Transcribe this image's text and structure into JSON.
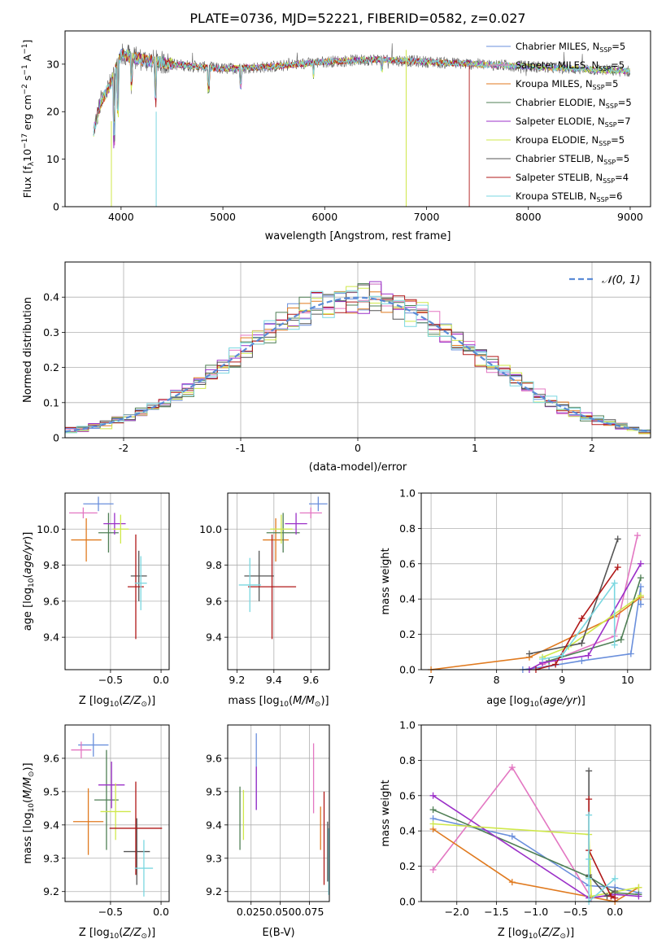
{
  "figure_title": "PLATE=0736, MJD=52221, FIBERID=0582, z=0.027",
  "series_colors": [
    "#6a8fdc",
    "#e377c2",
    "#e07a1f",
    "#4f7f55",
    "#9b30c8",
    "#cfe84a",
    "#555555",
    "#b01818",
    "#7ad7e0"
  ],
  "series_names": [
    "Chabrier MILES, N_SSP=5",
    "Salpeter MILES, N_SSP=5",
    "Kroupa MILES, N_SSP=5",
    "Chabrier ELODIE, N_SSP=5",
    "Salpeter ELODIE, N_SSP=7",
    "Kroupa ELODIE, N_SSP=5",
    "Chabrier STELIB, N_SSP=5",
    "Salpeter STELIB, N_SSP=4",
    "Kroupa STELIB, N_SSP=6"
  ],
  "chart_data": [
    {
      "id": "spectrum",
      "type": "line",
      "xlabel": "wavelength [Angstrom, rest frame]",
      "ylabel": "Flux [f_λ 10^-17 erg cm^-2 s^-1 A^-1]",
      "xlim": [
        3450,
        9200
      ],
      "ylim": [
        0,
        37
      ],
      "xticks": [
        4000,
        5000,
        6000,
        7000,
        8000,
        9000
      ],
      "yticks": [
        0,
        10,
        20,
        30
      ],
      "grid": false,
      "legend": "top-right",
      "note_cutoffs": {
        "Kroupa ELODIE": 6800,
        "Salpeter STELIB": 7420
      },
      "continuum": [
        [
          3730,
          16
        ],
        [
          3800,
          22
        ],
        [
          3900,
          26
        ],
        [
          4000,
          32
        ],
        [
          4200,
          31
        ],
        [
          4500,
          30
        ],
        [
          5000,
          29
        ],
        [
          5500,
          29.5
        ],
        [
          6000,
          30.5
        ],
        [
          6500,
          31
        ],
        [
          7000,
          30.5
        ],
        [
          7500,
          30
        ],
        [
          8000,
          29.5
        ],
        [
          8500,
          29
        ],
        [
          9000,
          28.5
        ],
        [
          9200,
          28.5
        ]
      ]
    },
    {
      "id": "residuals",
      "type": "line",
      "xlabel": "(data-model)/error",
      "ylabel": "Normed distribution",
      "xlim": [
        -2.5,
        2.5
      ],
      "ylim": [
        0,
        0.5
      ],
      "xticks": [
        -2,
        -1,
        0,
        1,
        2
      ],
      "yticks": [
        0,
        0.1,
        0.2,
        0.3,
        0.4
      ],
      "grid": true,
      "legend": "top-right",
      "legend_label": "N(0,1)",
      "bin_width": 0.1
    },
    {
      "id": "age_vs_Z",
      "type": "scatter",
      "xlabel": "Z [log10(Z/Z_sun)]",
      "ylabel": "age  [log10(age/yr)]",
      "xlim": [
        -0.95,
        0.08
      ],
      "ylim": [
        9.22,
        10.2
      ],
      "xticks": [
        -0.5,
        0.0
      ],
      "xticklabels": [
        "−0.5",
        "0.0"
      ],
      "yticks": [
        9.4,
        9.6,
        9.8,
        10.0
      ],
      "yticklabels": [
        "9.4",
        "9.6",
        "9.8",
        "10.0"
      ],
      "grid": true,
      "points": [
        {
          "s": 0,
          "x": -0.62,
          "y": 10.14,
          "xerr": 0.15,
          "yerr": 0.04
        },
        {
          "s": 1,
          "x": -0.77,
          "y": 10.09,
          "xerr": 0.14,
          "yerr": 0.03
        },
        {
          "s": 2,
          "x": -0.74,
          "y": 9.94,
          "xerr": 0.15,
          "yerr": 0.12
        },
        {
          "s": 3,
          "x": -0.52,
          "y": 9.98,
          "xerr": 0.1,
          "yerr": 0.11
        },
        {
          "s": 4,
          "x": -0.46,
          "y": 10.03,
          "xerr": 0.11,
          "yerr": 0.06
        },
        {
          "s": 5,
          "x": -0.4,
          "y": 10.0,
          "xerr": 0.08,
          "yerr": 0.08
        },
        {
          "s": 6,
          "x": -0.22,
          "y": 9.74,
          "xerr": 0.08,
          "yerr": 0.14
        },
        {
          "s": 7,
          "x": -0.25,
          "y": 9.68,
          "xerr": 0.08,
          "yerr": 0.29
        },
        {
          "s": 8,
          "x": -0.2,
          "y": 9.7,
          "xerr": 0.06,
          "yerr": 0.15
        }
      ]
    },
    {
      "id": "age_vs_mass",
      "type": "scatter",
      "xlabel": "mass [log10(M/M_sun)]",
      "ylabel": "",
      "xlim": [
        9.15,
        9.7
      ],
      "ylim": [
        9.22,
        10.2
      ],
      "xticks": [
        9.2,
        9.4,
        9.6
      ],
      "xticklabels": [
        "9.2",
        "9.4",
        "9.6"
      ],
      "yticks": [
        9.4,
        9.6,
        9.8,
        10.0
      ],
      "yticklabels": [
        "9.4",
        "9.6",
        "9.8",
        "10.0"
      ],
      "grid": true,
      "points": [
        {
          "s": 0,
          "x": 9.64,
          "y": 10.14,
          "xerr": 0.05,
          "yerr": 0.04
        },
        {
          "s": 1,
          "x": 9.6,
          "y": 10.09,
          "xerr": 0.06,
          "yerr": 0.03
        },
        {
          "s": 2,
          "x": 9.41,
          "y": 9.94,
          "xerr": 0.07,
          "yerr": 0.12
        },
        {
          "s": 3,
          "x": 9.45,
          "y": 9.98,
          "xerr": 0.09,
          "yerr": 0.11
        },
        {
          "s": 4,
          "x": 9.52,
          "y": 10.03,
          "xerr": 0.06,
          "yerr": 0.06
        },
        {
          "s": 5,
          "x": 9.44,
          "y": 10.0,
          "xerr": 0.06,
          "yerr": 0.08
        },
        {
          "s": 6,
          "x": 9.32,
          "y": 9.74,
          "xerr": 0.08,
          "yerr": 0.14
        },
        {
          "s": 7,
          "x": 9.39,
          "y": 9.68,
          "xerr": 0.13,
          "yerr": 0.29
        },
        {
          "s": 8,
          "x": 9.27,
          "y": 9.69,
          "xerr": 0.06,
          "yerr": 0.15
        }
      ]
    },
    {
      "id": "weight_vs_age",
      "type": "line",
      "xlabel": "age  [log10(age/yr)]",
      "ylabel": "mass weight",
      "xlim": [
        6.85,
        10.35
      ],
      "ylim": [
        0,
        1.0
      ],
      "xticks": [
        7,
        8,
        9,
        10
      ],
      "xticklabels": [
        "7",
        "8",
        "9",
        "10"
      ],
      "yticks": [
        0,
        0.2,
        0.4,
        0.6,
        0.8,
        1.0
      ],
      "yticklabels": [
        "0.0",
        "0.2",
        "0.4",
        "0.6",
        "0.8",
        "1.0"
      ],
      "grid": true,
      "series": [
        {
          "s": 0,
          "points": [
            [
              8.4,
              0.0
            ],
            [
              8.8,
              0.02
            ],
            [
              9.3,
              0.05
            ],
            [
              10.05,
              0.09
            ],
            [
              10.2,
              0.47
            ],
            [
              10.2,
              0.37
            ]
          ]
        },
        {
          "s": 1,
          "points": [
            [
              8.7,
              0.03
            ],
            [
              9.8,
              0.19
            ],
            [
              10.15,
              0.76
            ]
          ]
        },
        {
          "s": 2,
          "points": [
            [
              7.0,
              0.0
            ],
            [
              8.5,
              0.07
            ],
            [
              9.8,
              0.3
            ],
            [
              10.2,
              0.41
            ]
          ]
        },
        {
          "s": 3,
          "points": [
            [
              8.8,
              0.05
            ],
            [
              9.9,
              0.17
            ],
            [
              10.2,
              0.52
            ]
          ]
        },
        {
          "s": 4,
          "points": [
            [
              8.5,
              0.0
            ],
            [
              8.7,
              0.04
            ],
            [
              9.4,
              0.08
            ],
            [
              10.2,
              0.6
            ]
          ]
        },
        {
          "s": 5,
          "points": [
            [
              8.7,
              0.07
            ],
            [
              9.1,
              0.13
            ],
            [
              10.2,
              0.42
            ]
          ]
        },
        {
          "s": 6,
          "points": [
            [
              8.5,
              0.09
            ],
            [
              9.3,
              0.15
            ],
            [
              9.85,
              0.74
            ]
          ]
        },
        {
          "s": 7,
          "points": [
            [
              8.6,
              0.0
            ],
            [
              8.9,
              0.03
            ],
            [
              9.3,
              0.29
            ],
            [
              9.85,
              0.58
            ]
          ]
        },
        {
          "s": 8,
          "points": [
            [
              8.7,
              0.06
            ],
            [
              9.0,
              0.08
            ],
            [
              9.8,
              0.49
            ],
            [
              9.8,
              0.14
            ]
          ]
        }
      ]
    },
    {
      "id": "mass_vs_Z",
      "type": "scatter",
      "xlabel": "Z [log10(Z/Z_sun)]",
      "ylabel": "mass [log10(M/M_sun)]",
      "xlim": [
        -0.95,
        0.08
      ],
      "ylim": [
        9.17,
        9.7
      ],
      "xticks": [
        -0.5,
        0.0
      ],
      "xticklabels": [
        "−0.5",
        "0.0"
      ],
      "yticks": [
        9.2,
        9.3,
        9.4,
        9.5,
        9.6
      ],
      "yticklabels": [
        "9.2",
        "9.3",
        "9.4",
        "9.5",
        "9.6"
      ],
      "grid": true,
      "points": [
        {
          "s": 0,
          "x": -0.67,
          "y": 9.64,
          "xerr": 0.15,
          "yerr": 0.035
        },
        {
          "s": 1,
          "x": -0.79,
          "y": 9.625,
          "xerr": 0.1,
          "yerr": 0.025
        },
        {
          "s": 2,
          "x": -0.72,
          "y": 9.41,
          "xerr": 0.15,
          "yerr": 0.1
        },
        {
          "s": 3,
          "x": -0.54,
          "y": 9.475,
          "xerr": 0.12,
          "yerr": 0.15
        },
        {
          "s": 4,
          "x": -0.49,
          "y": 9.52,
          "xerr": 0.13,
          "yerr": 0.07
        },
        {
          "s": 5,
          "x": -0.45,
          "y": 9.44,
          "xerr": 0.15,
          "yerr": 0.085
        },
        {
          "s": 6,
          "x": -0.24,
          "y": 9.32,
          "xerr": 0.13,
          "yerr": 0.1
        },
        {
          "s": 7,
          "x": -0.25,
          "y": 9.39,
          "xerr": 0.26,
          "yerr": 0.14
        },
        {
          "s": 8,
          "x": -0.17,
          "y": 9.27,
          "xerr": 0.09,
          "yerr": 0.085
        }
      ]
    },
    {
      "id": "mass_vs_EBV",
      "type": "scatter",
      "xlabel": "E(B-V)",
      "ylabel": "",
      "xlim": [
        0.005,
        0.092
      ],
      "ylim": [
        9.17,
        9.7
      ],
      "xticks": [
        0.025,
        0.05,
        0.075
      ],
      "xticklabels": [
        "0.025",
        "0.050",
        "0.075"
      ],
      "yticks": [
        9.2,
        9.3,
        9.4,
        9.5,
        9.6
      ],
      "yticklabels": [
        "9.2",
        "9.3",
        "9.4",
        "9.5",
        "9.6"
      ],
      "grid": true,
      "points": [
        {
          "s": 0,
          "x": 0.0295,
          "y": 9.56,
          "xerr": 0,
          "yerr": 0.115
        },
        {
          "s": 1,
          "x": 0.0785,
          "y": 9.54,
          "xerr": 0,
          "yerr": 0.105
        },
        {
          "s": 2,
          "x": 0.0845,
          "y": 9.39,
          "xerr": 0,
          "yerr": 0.065
        },
        {
          "s": 3,
          "x": 0.0155,
          "y": 9.42,
          "xerr": 0,
          "yerr": 0.095
        },
        {
          "s": 4,
          "x": 0.0295,
          "y": 9.51,
          "xerr": 0,
          "yerr": 0.065
        },
        {
          "s": 5,
          "x": 0.0185,
          "y": 9.43,
          "xerr": 0,
          "yerr": 0.075
        },
        {
          "s": 6,
          "x": 0.0905,
          "y": 9.32,
          "xerr": 0,
          "yerr": 0.09
        },
        {
          "s": 7,
          "x": 0.0875,
          "y": 9.36,
          "xerr": 0,
          "yerr": 0.14
        },
        {
          "s": 8,
          "x": 0.0915,
          "y": 9.29,
          "xerr": 0,
          "yerr": 0.1
        }
      ]
    },
    {
      "id": "weight_vs_Z",
      "type": "line",
      "xlabel": "Z [log10(Z/Z_sun)]",
      "ylabel": "mass weight",
      "xlim": [
        -2.45,
        0.45
      ],
      "ylim": [
        0,
        1.0
      ],
      "xticks": [
        -2.0,
        -1.5,
        -1.0,
        -0.5,
        0.0
      ],
      "xticklabels": [
        "−2.0",
        "−1.5",
        "−1.0",
        "−0.5",
        "0.0"
      ],
      "yticks": [
        0,
        0.2,
        0.4,
        0.6,
        0.8,
        1.0
      ],
      "yticklabels": [
        "0.0",
        "0.2",
        "0.4",
        "0.6",
        "0.8",
        "1.0"
      ],
      "grid": true,
      "series": [
        {
          "s": 0,
          "points": [
            [
              -2.3,
              0.47
            ],
            [
              -1.3,
              0.37
            ],
            [
              -0.33,
              0.09
            ],
            [
              0.0,
              0.08
            ],
            [
              0.3,
              0.05
            ]
          ]
        },
        {
          "s": 1,
          "points": [
            [
              -2.3,
              0.18
            ],
            [
              -1.3,
              0.76
            ],
            [
              -0.3,
              0.02
            ],
            [
              0.0,
              0.04
            ]
          ]
        },
        {
          "s": 2,
          "points": [
            [
              -2.3,
              0.41
            ],
            [
              -1.3,
              0.11
            ],
            [
              0.0,
              0.0
            ],
            [
              0.3,
              0.08
            ]
          ]
        },
        {
          "s": 3,
          "points": [
            [
              -2.3,
              0.52
            ],
            [
              -0.33,
              0.14
            ],
            [
              0.0,
              0.05
            ],
            [
              0.3,
              0.04
            ]
          ]
        },
        {
          "s": 4,
          "points": [
            [
              -2.3,
              0.6
            ],
            [
              -0.33,
              0.02
            ],
            [
              0.0,
              0.04
            ],
            [
              0.3,
              0.03
            ]
          ]
        },
        {
          "s": 5,
          "points": [
            [
              -2.3,
              0.44
            ],
            [
              -0.33,
              0.38
            ],
            [
              -0.3,
              0.03
            ],
            [
              0.3,
              0.08
            ]
          ]
        },
        {
          "s": 6,
          "points": [
            [
              -0.33,
              0.74
            ],
            [
              -0.33,
              0.15
            ],
            [
              -0.1,
              0.03
            ],
            [
              0.0,
              0.06
            ]
          ]
        },
        {
          "s": 7,
          "points": [
            [
              -0.33,
              0.58
            ],
            [
              -0.33,
              0.29
            ],
            [
              -0.05,
              0.03
            ],
            [
              0.0,
              0.02
            ]
          ]
        },
        {
          "s": 8,
          "points": [
            [
              -0.33,
              0.49
            ],
            [
              -0.33,
              0.24
            ],
            [
              -0.33,
              0.13
            ],
            [
              -0.33,
              0.0
            ],
            [
              0.0,
              0.13
            ]
          ]
        }
      ]
    }
  ]
}
